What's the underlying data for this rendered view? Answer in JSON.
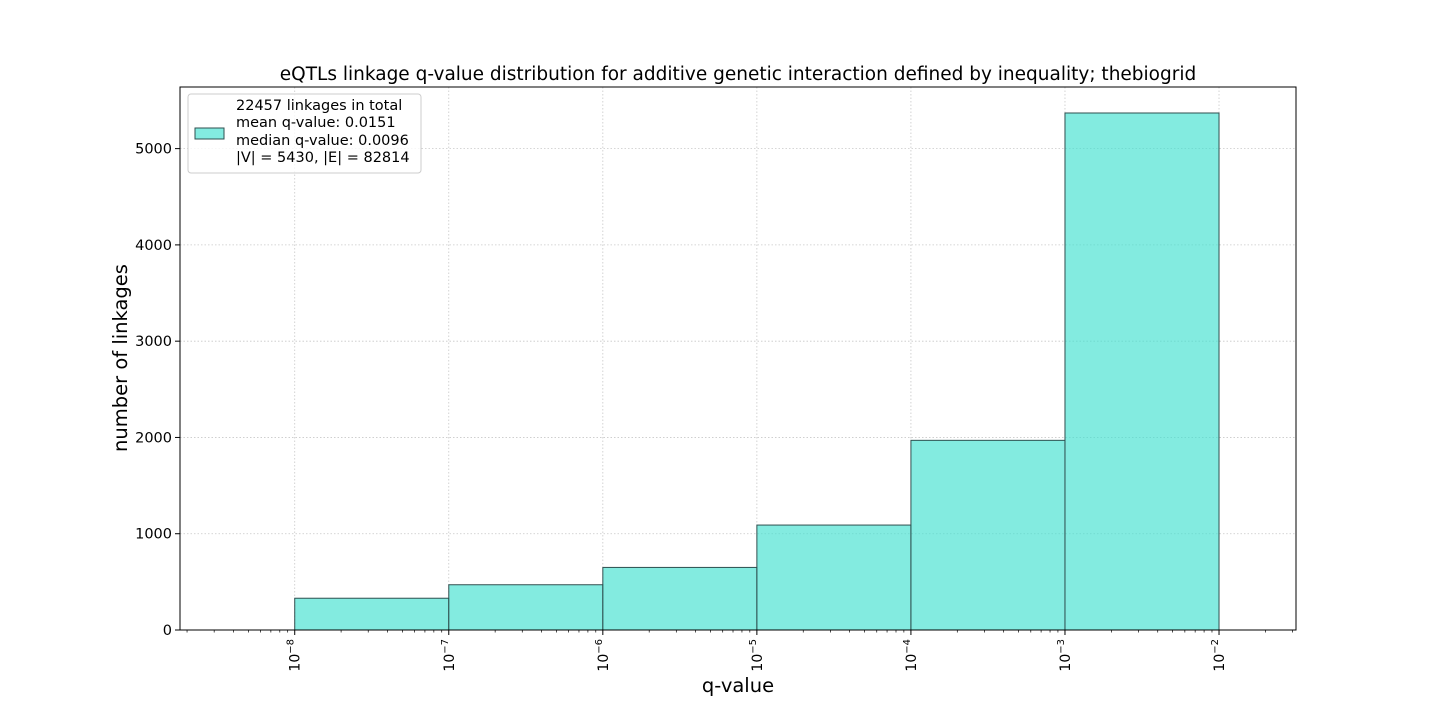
{
  "chart_data": {
    "type": "bar",
    "title": "eQTLs linkage q-value distribution for additive genetic interaction defined by inequality; thebiogrid",
    "xlabel": "q-value",
    "ylabel": "number of linkages",
    "x_scale": "log",
    "xlim": [
      1.8e-09,
      0.0316
    ],
    "ylim": [
      0,
      5640
    ],
    "x_ticks": [
      {
        "value": 1e-08,
        "label_base": "10",
        "label_exp": "−8"
      },
      {
        "value": 1e-07,
        "label_base": "10",
        "label_exp": "−7"
      },
      {
        "value": 1e-06,
        "label_base": "10",
        "label_exp": "−6"
      },
      {
        "value": 1e-05,
        "label_base": "10",
        "label_exp": "−5"
      },
      {
        "value": 0.0001,
        "label_base": "10",
        "label_exp": "−4"
      },
      {
        "value": 0.001,
        "label_base": "10",
        "label_exp": "−3"
      },
      {
        "value": 0.01,
        "label_base": "10",
        "label_exp": "−2"
      }
    ],
    "y_ticks": [
      0,
      1000,
      2000,
      3000,
      4000,
      5000
    ],
    "bins": [
      {
        "from": 1e-08,
        "to": 1e-07,
        "count": 330
      },
      {
        "from": 1e-07,
        "to": 1e-06,
        "count": 470
      },
      {
        "from": 1e-06,
        "to": 1e-05,
        "count": 650
      },
      {
        "from": 1e-05,
        "to": 0.0001,
        "count": 1090
      },
      {
        "from": 0.0001,
        "to": 0.001,
        "count": 1970
      },
      {
        "from": 0.001,
        "to": 0.01,
        "count": 5370
      }
    ],
    "grid": true,
    "legend_position": "top-left",
    "legend_lines": [
      "22457 linkages in total",
      "mean q-value: 0.0151",
      "median q-value: 0.0096",
      "|V| = 5430, |E| = 82814"
    ],
    "colors": {
      "bar_fill": "#40e0d0",
      "bar_alpha": 0.65,
      "bar_edge": "#2f4f4f",
      "grid": "#b0b0b0"
    }
  }
}
